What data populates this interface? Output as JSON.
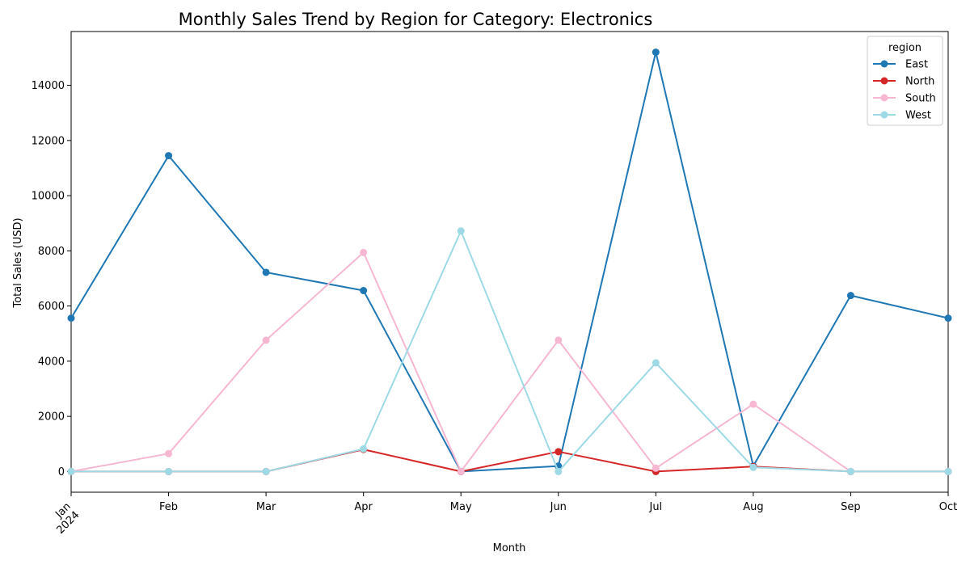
{
  "chart_data": {
    "type": "line",
    "title": "Monthly Sales Trend by Region for Category: Electronics",
    "xlabel": "Month",
    "ylabel": "Total Sales (USD)",
    "categories": [
      "Jan\n2024",
      "Feb",
      "Mar",
      "Apr",
      "May",
      "Jun",
      "Jul",
      "Aug",
      "Sep",
      "Oct"
    ],
    "ylim": [
      -750,
      15950
    ],
    "yticks": [
      0,
      2000,
      4000,
      6000,
      8000,
      10000,
      12000,
      14000
    ],
    "grid": false,
    "legend": {
      "title": "region",
      "placement": "top-right"
    },
    "series": [
      {
        "name": "East",
        "color": "#1f77b4",
        "values": [
          5560,
          11450,
          7220,
          6560,
          0,
          200,
          15200,
          200,
          6380,
          5560
        ]
      },
      {
        "name": "North",
        "color": "#d62728",
        "values": [
          0,
          0,
          0,
          800,
          0,
          720,
          0,
          180,
          0,
          0
        ]
      },
      {
        "name": "South",
        "color": "#f7b6d2",
        "values": [
          0,
          650,
          4760,
          7940,
          0,
          4760,
          120,
          2440,
          0,
          0
        ]
      },
      {
        "name": "West",
        "color": "#9edae5",
        "values": [
          0,
          0,
          0,
          820,
          8720,
          0,
          3940,
          150,
          0,
          0
        ]
      }
    ]
  }
}
